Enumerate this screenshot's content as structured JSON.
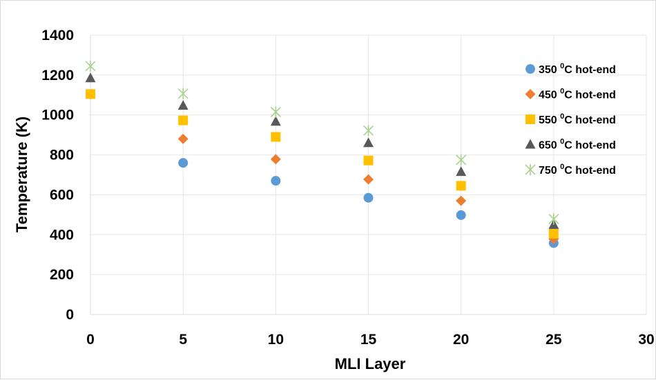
{
  "chart_data": {
    "type": "scatter",
    "title": "",
    "xlabel": "MLI Layer",
    "ylabel": "Temperature (K)",
    "xlim": [
      0,
      30
    ],
    "ylim": [
      0,
      1400
    ],
    "x_ticks": [
      "0",
      "5",
      "10",
      "15",
      "20",
      "25",
      "30"
    ],
    "y_ticks": [
      "0",
      "200",
      "400",
      "600",
      "800",
      "1000",
      "1200",
      "1400"
    ],
    "grid": "vertical and horizontal",
    "legend": "right",
    "x": [
      0,
      5,
      10,
      15,
      20,
      25
    ],
    "series": [
      {
        "name": "350 °C hot-end",
        "legend_text": "350",
        "legend_sup": "0",
        "legend_suffix": "C hot-end",
        "marker": "circle",
        "color": "#5b9bd5",
        "values": [
          1105,
          760,
          670,
          585,
          498,
          358
        ]
      },
      {
        "name": "450 °C hot-end",
        "legend_text": "450",
        "legend_sup": "0",
        "legend_suffix": "C hot-end",
        "marker": "diamond",
        "color": "#ed7d31",
        "values": [
          1105,
          880,
          778,
          677,
          570,
          378
        ]
      },
      {
        "name": "550 °C hot-end",
        "legend_text": "550",
        "legend_sup": "0",
        "legend_suffix": "C hot-end",
        "marker": "square",
        "color": "#ffc000",
        "values": [
          1105,
          973,
          890,
          772,
          645,
          405
        ]
      },
      {
        "name": "650 °C hot-end",
        "legend_text": "650",
        "legend_sup": "0",
        "legend_suffix": "C hot-end",
        "marker": "triangle",
        "color": "#595959",
        "values": [
          1185,
          1047,
          967,
          860,
          715,
          450
        ]
      },
      {
        "name": "750 °C hot-end",
        "legend_text": "750",
        "legend_sup": "0",
        "legend_suffix": "C hot-end",
        "marker": "star",
        "color": "#a9d18e",
        "values": [
          1245,
          1107,
          1015,
          922,
          775,
          478
        ]
      }
    ]
  }
}
